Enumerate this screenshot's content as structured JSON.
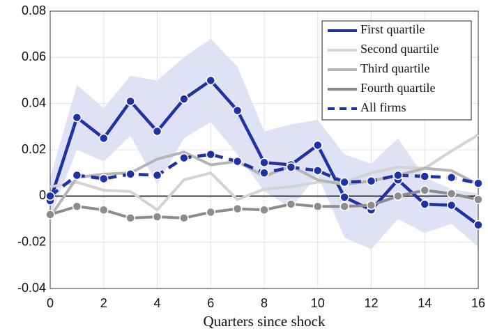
{
  "chart_data": {
    "type": "line",
    "x_label": "Quarters since shock",
    "x": [
      0,
      1,
      2,
      3,
      4,
      5,
      6,
      7,
      8,
      9,
      10,
      11,
      12,
      13,
      14,
      15,
      16
    ],
    "xlim": [
      0,
      16
    ],
    "xticks": [
      0,
      2,
      4,
      6,
      8,
      10,
      12,
      14,
      16
    ],
    "ylim": [
      -0.04,
      0.08
    ],
    "yticks": [
      -0.04,
      -0.02,
      0,
      0.02,
      0.04,
      0.06,
      0.08
    ],
    "grid": true,
    "legend": "upper right",
    "band": {
      "color": "#dfe2f4",
      "upper": [
        0.008,
        0.048,
        0.038,
        0.052,
        0.05,
        0.06,
        0.068,
        0.056,
        0.028,
        0.031,
        0.033,
        0.018,
        0.014,
        0.025,
        0.008,
        0.003,
        0.001
      ],
      "lower": [
        -0.009,
        0.02,
        0.015,
        0.026,
        0.005,
        0.025,
        0.032,
        0.018,
        0.002,
        -0.005,
        0.009,
        -0.018,
        -0.023,
        -0.01,
        -0.016,
        -0.012,
        -0.022
      ]
    },
    "series": [
      {
        "name": "First quartile",
        "color": "#1f32a3",
        "dashed": false,
        "markers": true,
        "values": [
          -0.002,
          0.034,
          0.025,
          0.041,
          0.028,
          0.042,
          0.05,
          0.037,
          0.0145,
          0.0135,
          0.022,
          -0.0005,
          -0.006,
          0.007,
          -0.0035,
          -0.004,
          -0.0125
        ]
      },
      {
        "name": "Second quartile",
        "color": "#d3d3d3",
        "dashed": false,
        "markers": false,
        "values": [
          0.004,
          0.006,
          0.0025,
          0.002,
          -0.006,
          0.007,
          0.01,
          -0.0015,
          0.003,
          0.004,
          0.006,
          0.006,
          0.01,
          0.0125,
          0.012,
          0.0195,
          0.0265
        ]
      },
      {
        "name": "Third quartile",
        "color": "#b5b5b5",
        "dashed": false,
        "markers": false,
        "values": [
          -0.009,
          0.008,
          0.0095,
          0.01,
          0.016,
          0.019,
          0.0135,
          0.015,
          0.0085,
          0.013,
          0.007,
          0.005,
          0.0065,
          0.009,
          0.012,
          0.011,
          0.005
        ]
      },
      {
        "name": "Fourth quartile",
        "color": "#8c8c8c",
        "dashed": false,
        "markers": true,
        "values": [
          -0.008,
          -0.0045,
          -0.006,
          -0.0095,
          -0.009,
          -0.0095,
          -0.007,
          -0.0055,
          -0.006,
          -0.0035,
          -0.0045,
          -0.0045,
          -0.004,
          0.0,
          0.0025,
          0.001,
          -0.0015
        ]
      },
      {
        "name": "All firms",
        "color": "#1f32a3",
        "dashed": true,
        "markers": true,
        "values": [
          0.0,
          0.009,
          0.0075,
          0.0095,
          0.009,
          0.0165,
          0.018,
          0.015,
          0.01,
          0.0125,
          0.011,
          0.006,
          0.0065,
          0.009,
          0.0085,
          0.008,
          0.0055
        ]
      }
    ]
  }
}
